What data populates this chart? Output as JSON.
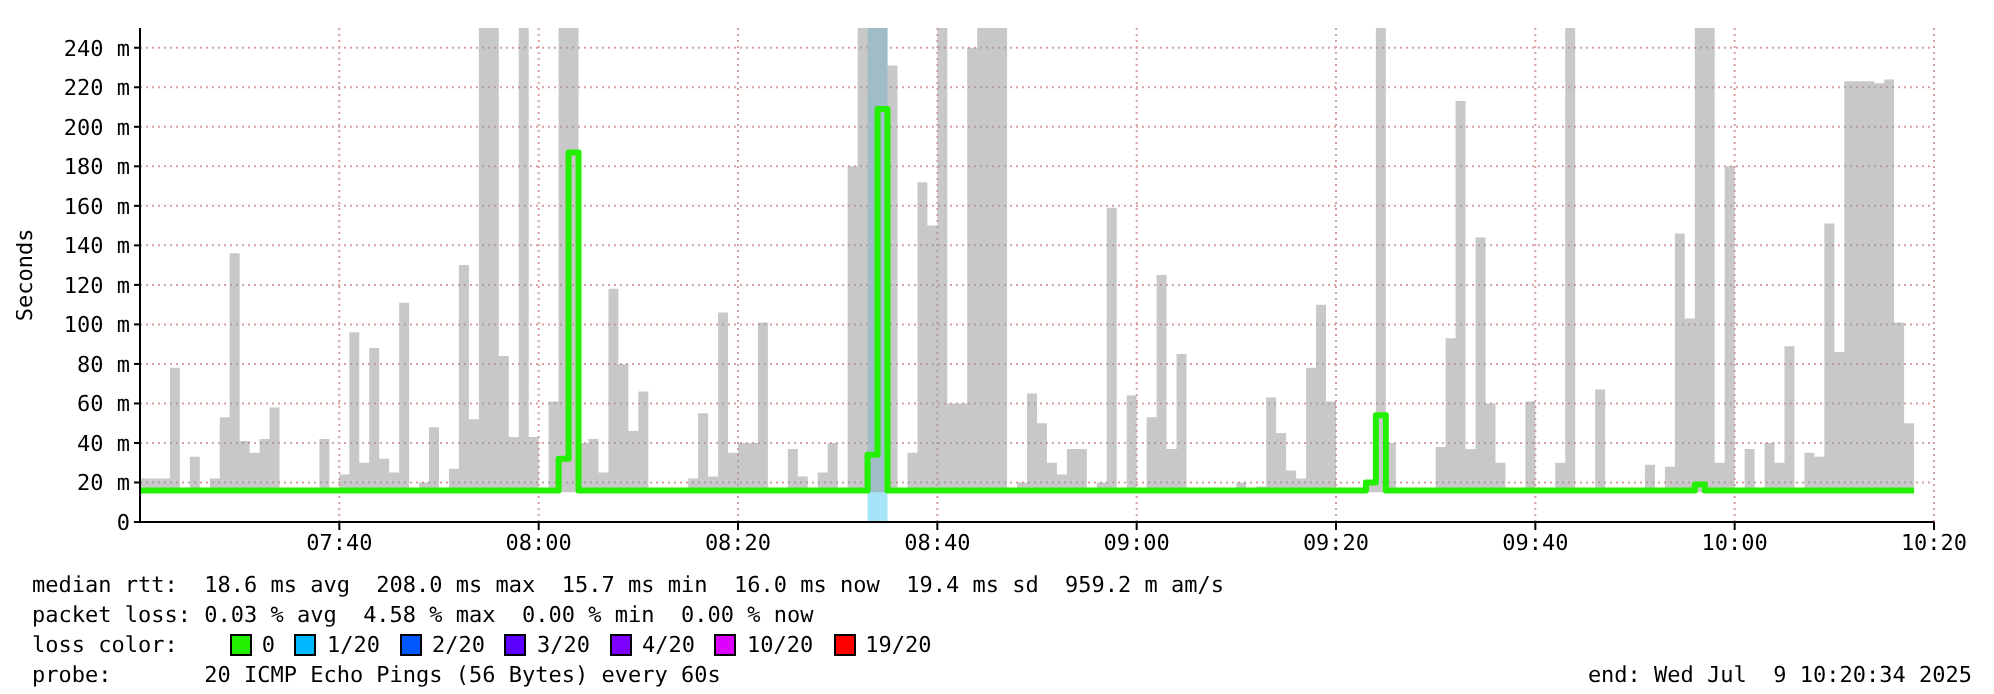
{
  "chart_data": {
    "type": "step",
    "ylabel": "Seconds",
    "xlim": [
      "2025-07-09T07:20",
      "2025-07-09T10:20"
    ],
    "xticks": [
      {
        "value": "2025-07-09T07:40",
        "label": "07:40"
      },
      {
        "value": "2025-07-09T08:00",
        "label": "08:00"
      },
      {
        "value": "2025-07-09T08:20",
        "label": "08:20"
      },
      {
        "value": "2025-07-09T08:40",
        "label": "08:40"
      },
      {
        "value": "2025-07-09T09:00",
        "label": "09:00"
      },
      {
        "value": "2025-07-09T09:20",
        "label": "09:20"
      },
      {
        "value": "2025-07-09T09:40",
        "label": "09:40"
      },
      {
        "value": "2025-07-09T10:00",
        "label": "10:00"
      },
      {
        "value": "2025-07-09T10:20",
        "label": "10:20"
      }
    ],
    "ylim": [
      0,
      250
    ],
    "yticks": [
      0,
      {
        "value": 20,
        "label": "20 m"
      },
      {
        "value": 40,
        "label": "40 m"
      },
      {
        "value": 60,
        "label": "60 m"
      },
      {
        "value": 80,
        "label": "80 m"
      },
      {
        "value": 100,
        "label": "100 m"
      },
      {
        "value": 120,
        "label": "120 m"
      },
      {
        "value": 140,
        "label": "140 m"
      },
      {
        "value": 160,
        "label": "160 m"
      },
      {
        "value": 180,
        "label": "180 m"
      },
      {
        "value": 200,
        "label": "200 m"
      },
      {
        "value": 220,
        "label": "220 m"
      },
      {
        "value": 240,
        "label": "240 m"
      }
    ],
    "grid": true,
    "x": [
      "2025-07-09T07:20",
      "2025-07-09T07:23",
      "2025-07-09T07:24",
      "2025-07-09T07:25",
      "2025-07-09T07:26",
      "2025-07-09T07:27",
      "2025-07-09T07:28",
      "2025-07-09T07:29",
      "2025-07-09T07:30",
      "2025-07-09T07:31",
      "2025-07-09T07:32",
      "2025-07-09T07:33",
      "2025-07-09T07:34",
      "2025-07-09T07:38",
      "2025-07-09T07:39",
      "2025-07-09T07:40",
      "2025-07-09T07:41",
      "2025-07-09T07:42",
      "2025-07-09T07:43",
      "2025-07-09T07:44",
      "2025-07-09T07:45",
      "2025-07-09T07:46",
      "2025-07-09T07:47",
      "2025-07-09T07:48",
      "2025-07-09T07:49",
      "2025-07-09T07:50",
      "2025-07-09T07:51",
      "2025-07-09T07:52",
      "2025-07-09T07:53",
      "2025-07-09T07:54",
      "2025-07-09T07:56",
      "2025-07-09T07:57",
      "2025-07-09T07:58",
      "2025-07-09T07:59",
      "2025-07-09T08:00",
      "2025-07-09T08:01",
      "2025-07-09T08:02",
      "2025-07-09T08:03",
      "2025-07-09T08:04",
      "2025-07-09T08:05",
      "2025-07-09T08:06",
      "2025-07-09T08:07",
      "2025-07-09T08:08",
      "2025-07-09T08:09",
      "2025-07-09T08:10",
      "2025-07-09T08:11",
      "2025-07-09T08:15",
      "2025-07-09T08:16",
      "2025-07-09T08:17",
      "2025-07-09T08:18",
      "2025-07-09T08:19",
      "2025-07-09T08:20",
      "2025-07-09T08:22",
      "2025-07-09T08:23",
      "2025-07-09T08:25",
      "2025-07-09T08:26",
      "2025-07-09T08:27",
      "2025-07-09T08:28",
      "2025-07-09T08:29",
      "2025-07-09T08:30",
      "2025-07-09T08:31",
      "2025-07-09T08:32",
      "2025-07-09T08:33",
      "2025-07-09T08:34",
      "2025-07-09T08:35",
      "2025-07-09T08:36",
      "2025-07-09T08:37",
      "2025-07-09T08:38",
      "2025-07-09T08:39",
      "2025-07-09T08:40",
      "2025-07-09T08:41",
      "2025-07-09T08:43",
      "2025-07-09T08:44",
      "2025-07-09T08:47",
      "2025-07-09T08:48",
      "2025-07-09T08:49",
      "2025-07-09T08:50",
      "2025-07-09T08:51",
      "2025-07-09T08:52",
      "2025-07-09T08:53",
      "2025-07-09T08:55",
      "2025-07-09T08:56",
      "2025-07-09T08:57",
      "2025-07-09T08:58",
      "2025-07-09T08:59",
      "2025-07-09T09:00",
      "2025-07-09T09:01",
      "2025-07-09T09:02",
      "2025-07-09T09:03",
      "2025-07-09T09:04",
      "2025-07-09T09:05",
      "2025-07-09T09:10",
      "2025-07-09T09:11",
      "2025-07-09T09:12",
      "2025-07-09T09:13",
      "2025-07-09T09:14",
      "2025-07-09T09:15",
      "2025-07-09T09:16",
      "2025-07-09T09:17",
      "2025-07-09T09:18",
      "2025-07-09T09:19",
      "2025-07-09T09:20",
      "2025-07-09T09:23",
      "2025-07-09T09:24",
      "2025-07-09T09:25",
      "2025-07-09T09:26",
      "2025-07-09T09:30",
      "2025-07-09T09:31",
      "2025-07-09T09:32",
      "2025-07-09T09:33",
      "2025-07-09T09:34",
      "2025-07-09T09:35",
      "2025-07-09T09:36",
      "2025-07-09T09:37",
      "2025-07-09T09:39",
      "2025-07-09T09:40",
      "2025-07-09T09:42",
      "2025-07-09T09:43",
      "2025-07-09T09:44",
      "2025-07-09T09:46",
      "2025-07-09T09:47",
      "2025-07-09T09:51",
      "2025-07-09T09:52",
      "2025-07-09T09:53",
      "2025-07-09T09:54",
      "2025-07-09T09:55",
      "2025-07-09T09:56",
      "2025-07-09T09:57",
      "2025-07-09T09:58",
      "2025-07-09T09:59",
      "2025-07-09T10:00",
      "2025-07-09T10:01",
      "2025-07-09T10:02",
      "2025-07-09T10:03",
      "2025-07-09T10:04",
      "2025-07-09T10:05",
      "2025-07-09T10:06",
      "2025-07-09T10:07",
      "2025-07-09T10:08",
      "2025-07-09T10:09",
      "2025-07-09T10:10",
      "2025-07-09T10:11",
      "2025-07-09T10:14",
      "2025-07-09T10:15",
      "2025-07-09T10:16",
      "2025-07-09T10:17",
      "2025-07-09T10:18"
    ],
    "series": [
      {
        "color": "#22f000",
        "values": [
          16,
          16,
          16,
          16,
          16,
          16,
          16,
          16,
          16,
          16,
          16,
          16,
          16,
          16,
          16,
          16,
          16,
          16,
          16,
          16,
          16,
          16,
          16,
          16,
          16,
          16,
          16,
          16,
          16,
          16,
          16,
          16,
          16,
          16,
          16,
          16,
          32,
          187,
          16,
          16,
          16,
          16,
          16,
          16,
          16,
          16,
          16,
          16,
          16,
          16,
          16,
          16,
          16,
          16,
          16,
          16,
          16,
          16,
          16,
          16,
          16,
          16,
          34,
          209,
          16,
          16,
          16,
          16,
          16,
          16,
          16,
          16,
          16,
          16,
          16,
          16,
          16,
          16,
          16,
          16,
          16,
          16,
          16,
          16,
          16,
          16,
          16,
          16,
          16,
          16,
          16,
          16,
          16,
          16,
          16,
          16,
          16,
          16,
          16,
          16,
          16,
          16,
          20,
          54,
          16,
          16,
          16,
          16,
          16,
          16,
          16,
          16,
          16,
          16,
          16,
          16,
          16,
          16,
          16,
          16,
          16,
          16,
          16,
          16,
          16,
          16,
          19,
          16,
          16,
          16,
          16,
          16,
          16,
          16,
          16,
          16,
          16,
          16,
          16,
          16,
          16,
          16,
          16,
          16,
          16,
          16,
          16
        ],
        "lower": [
          15,
          15,
          15,
          15,
          15,
          15,
          15,
          15,
          15,
          15,
          15,
          15,
          15,
          15,
          15,
          15,
          15,
          15,
          15,
          15,
          15,
          15,
          15,
          15,
          15,
          15,
          15,
          15,
          15,
          15,
          15,
          15,
          15,
          15,
          15,
          15,
          15,
          15,
          15,
          15,
          15,
          15,
          15,
          15,
          15,
          15,
          15,
          15,
          15,
          15,
          15,
          15,
          15,
          15,
          15,
          15,
          15,
          15,
          15,
          15,
          15,
          15,
          15,
          15,
          15,
          15,
          15,
          15,
          15,
          15,
          15,
          15,
          15,
          15,
          15,
          15,
          15,
          15,
          15,
          15,
          15,
          15,
          15,
          15,
          15,
          15,
          15,
          15,
          15,
          15,
          15,
          15,
          15,
          15,
          15,
          15,
          15,
          15,
          15,
          15,
          15,
          15,
          15,
          15,
          15,
          15,
          15,
          15,
          15,
          15,
          15,
          15,
          15,
          15,
          15,
          15,
          15,
          15,
          15,
          15,
          15,
          15,
          15,
          15,
          15,
          15,
          15,
          15,
          15,
          15,
          15,
          15,
          15,
          15,
          15,
          15,
          15,
          15,
          15,
          15,
          15,
          15,
          15,
          15,
          15,
          15,
          15
        ],
        "upper": [
          22,
          78,
          17,
          33,
          17,
          22,
          53,
          136,
          41,
          35,
          42,
          58,
          17,
          42,
          17,
          24,
          96,
          30,
          88,
          32,
          25,
          111,
          17,
          20,
          48,
          17,
          27,
          130,
          52,
          250,
          84,
          43,
          250,
          43,
          17,
          61,
          250,
          250,
          40,
          42,
          25,
          118,
          80,
          46,
          66,
          17,
          22,
          55,
          23,
          106,
          35,
          40,
          101,
          17,
          37,
          23,
          17,
          25,
          40,
          17,
          180,
          250,
          250,
          250,
          231,
          17,
          35,
          172,
          150,
          250,
          60,
          240,
          250,
          17,
          20,
          65,
          50,
          30,
          24,
          37,
          17,
          20,
          159,
          17,
          64,
          17,
          53,
          125,
          37,
          85,
          17,
          20,
          17,
          18,
          63,
          45,
          26,
          22,
          78,
          110,
          61,
          17,
          20,
          250,
          40,
          17,
          38,
          93,
          213,
          37,
          144,
          60,
          30,
          17,
          61,
          17,
          30,
          250,
          17,
          67,
          17,
          29,
          17,
          28,
          146,
          103,
          250,
          250,
          30,
          180,
          17,
          37,
          17,
          40,
          30,
          89,
          17,
          35,
          33,
          151,
          86,
          223,
          222,
          224,
          101,
          50,
          50
        ]
      }
    ],
    "bands": [
      {
        "axis": "x",
        "from": "2025-07-09T08:33",
        "to": "2025-07-09T08:35",
        "color": "#a6e4fa"
      }
    ],
    "annotations": [
      "median rtt:  18.6 ms avg  208.0 ms max  15.7 ms min  16.0 ms now  19.4 ms sd  959.2 m am/s",
      "packet loss: 0.03 % avg  4.58 % max  0.00 % min  0.00 % now",
      "loss color:",
      "0",
      "1/20",
      "2/20",
      "3/20",
      "4/20",
      "10/20",
      "19/20",
      "probe:       20 ICMP Echo Pings (56 Bytes) every 60s",
      "end: Wed Jul  9 10:20:34 2025"
    ]
  }
}
